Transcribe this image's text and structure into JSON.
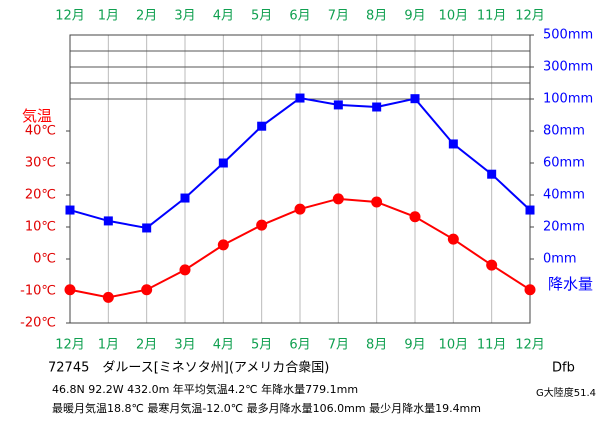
{
  "chart_data": {
    "type": "climograph",
    "categories": [
      "12月",
      "1月",
      "2月",
      "3月",
      "4月",
      "5月",
      "6月",
      "7月",
      "8月",
      "9月",
      "10月",
      "11月",
      "12月"
    ],
    "series": [
      {
        "name": "気温",
        "color": "#ff0000",
        "axis": "y",
        "marker": "circle",
        "values": [
          -9.6,
          -12.0,
          -9.6,
          -3.4,
          4.4,
          10.6,
          15.6,
          18.8,
          17.8,
          13.2,
          6.2,
          -1.9,
          -9.6
        ]
      },
      {
        "name": "降水量",
        "color": "#0000ff",
        "axis": "y2",
        "marker": "square",
        "values": [
          30.6,
          23.8,
          19.4,
          38.1,
          60.0,
          83.0,
          106.0,
          96.3,
          95.0,
          102.0,
          71.9,
          53.0,
          30.6
        ]
      }
    ],
    "ylim": [
      -20,
      70
    ],
    "yticks": [
      {
        "value": 40,
        "label": "40℃"
      },
      {
        "value": 30,
        "label": "30℃"
      },
      {
        "value": 20,
        "label": "20℃"
      },
      {
        "value": 10,
        "label": "10℃"
      },
      {
        "value": 0,
        "label": "0℃"
      },
      {
        "value": -10,
        "label": "-10℃"
      },
      {
        "value": -20,
        "label": "-20℃"
      }
    ],
    "y2lim": [
      -40,
      500
    ],
    "y2_compressed_above": 100,
    "y2_compression": 10,
    "y2ticks": [
      {
        "value": 500,
        "label": "500mm"
      },
      {
        "value": 300,
        "label": "300mm"
      },
      {
        "value": 100,
        "label": "100mm"
      },
      {
        "value": 80,
        "label": "80mm"
      },
      {
        "value": 60,
        "label": "60mm"
      },
      {
        "value": 40,
        "label": "40mm"
      },
      {
        "value": 20,
        "label": "20mm"
      },
      {
        "value": 0,
        "label": "0mm"
      }
    ],
    "y2lines": [
      100,
      200,
      300,
      400
    ],
    "grid": true,
    "caption": {
      "station": "72745　ダルース[ミネソタ州](アメリカ合衆国)",
      "climate": "Dfb",
      "line1": "46.8N  92.2W  432.0m 年平均気温4.2℃ 年降水量779.1mm",
      "continentality": "G大陸度51.4",
      "line2": "最暖月気温18.8℃ 最寒月気温-12.0℃ 最多月降水量106.0mm 最少月降水量19.4mm"
    }
  }
}
